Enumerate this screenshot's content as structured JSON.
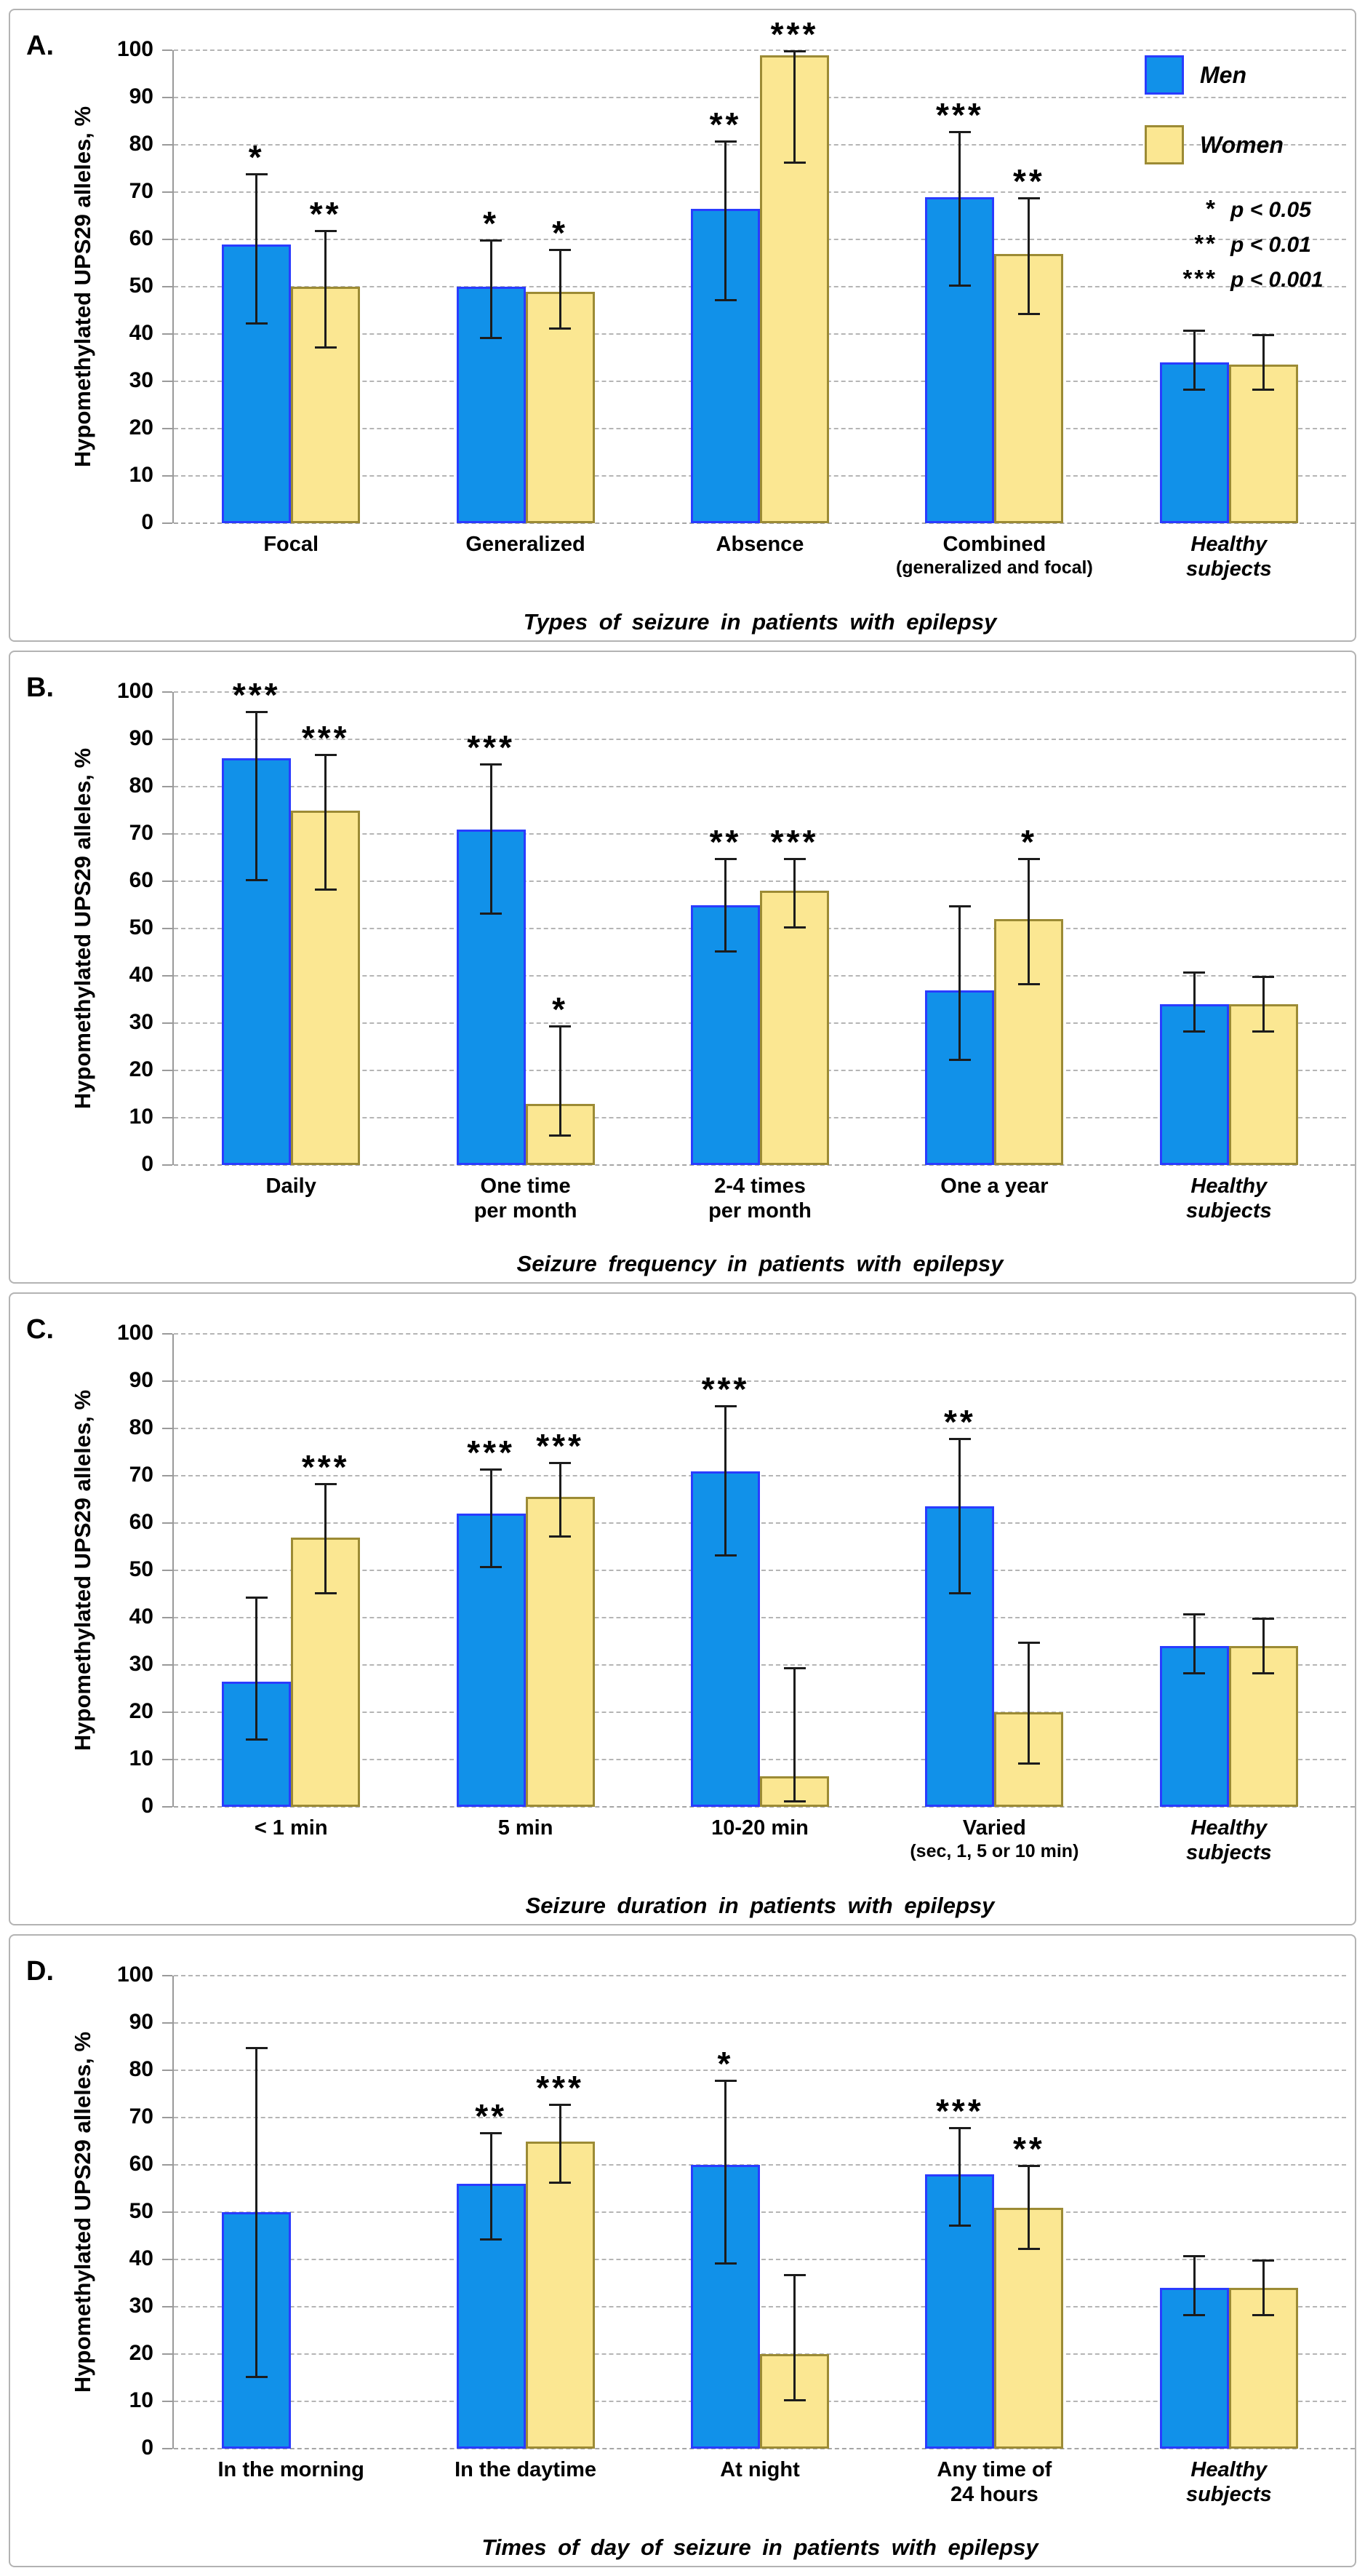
{
  "figure": {
    "ylabel": "Hypomethylated UPS29 alleles, %",
    "colors": {
      "men_fill": "#1191e9",
      "men_border": "#2a3cff",
      "women_fill": "#fbe792",
      "women_border": "#9c8b35",
      "error": "#1c1c1c",
      "grid": "#b5b5b5",
      "axis": "#9a9a9a",
      "panel_border": "#b3b3b3"
    },
    "legend": {
      "men": "Men",
      "women": "Women",
      "sig": [
        {
          "stars": "*",
          "label": "p < 0.05"
        },
        {
          "stars": "**",
          "label": "p < 0.01"
        },
        {
          "stars": "***",
          "label": "p < 0.001"
        }
      ]
    }
  },
  "chart_data": [
    {
      "panel": "A.",
      "type": "bar",
      "ylabel": "Hypomethylated UPS29 alleles, %",
      "xlabel": "Types of seizure in patients with epilepsy",
      "ylim": [
        0,
        100
      ],
      "ytick_step": 10,
      "grid": true,
      "legend_position": "top-right",
      "categories": [
        {
          "label": "Focal"
        },
        {
          "label": "Generalized"
        },
        {
          "label": "Absence"
        },
        {
          "label": "Combined",
          "sublabel": "(generalized and focal)"
        },
        {
          "label": "Healthy\nsubjects",
          "italic": true
        }
      ],
      "series": [
        {
          "name": "Men",
          "values": [
            59,
            50,
            66.5,
            69,
            34
          ],
          "err_low": [
            42,
            39,
            47,
            50,
            28
          ],
          "err_high": [
            74,
            60,
            81,
            83,
            41
          ],
          "stars": [
            "*",
            "*",
            "**",
            "***",
            ""
          ]
        },
        {
          "name": "Women",
          "values": [
            50,
            49,
            99,
            57,
            33.5
          ],
          "err_low": [
            37,
            41,
            76,
            44,
            28
          ],
          "err_high": [
            62,
            58,
            100,
            69,
            40
          ],
          "stars": [
            "**",
            "*",
            "***",
            "**",
            ""
          ]
        }
      ]
    },
    {
      "panel": "B.",
      "type": "bar",
      "ylabel": "Hypomethylated UPS29 alleles, %",
      "xlabel": "Seizure frequency in patients with epilepsy",
      "ylim": [
        0,
        100
      ],
      "ytick_step": 10,
      "grid": true,
      "categories": [
        {
          "label": "Daily"
        },
        {
          "label": "One time\nper month"
        },
        {
          "label": "2-4 times\nper month"
        },
        {
          "label": "One a year"
        },
        {
          "label": "Healthy\nsubjects",
          "italic": true
        }
      ],
      "series": [
        {
          "name": "Men",
          "values": [
            86,
            71,
            55,
            37,
            34
          ],
          "err_low": [
            60,
            53,
            45,
            22,
            28
          ],
          "err_high": [
            96,
            85,
            65,
            55,
            41
          ],
          "stars": [
            "***",
            "***",
            "**",
            "",
            ""
          ]
        },
        {
          "name": "Women",
          "values": [
            75,
            13,
            58,
            52,
            34
          ],
          "err_low": [
            58,
            6,
            50,
            38,
            28
          ],
          "err_high": [
            87,
            29.5,
            65,
            65,
            40
          ],
          "stars": [
            "***",
            "*",
            "***",
            "*",
            ""
          ]
        }
      ]
    },
    {
      "panel": "C.",
      "type": "bar",
      "ylabel": "Hypomethylated UPS29 alleles, %",
      "xlabel": "Seizure duration in patients with epilepsy",
      "ylim": [
        0,
        100
      ],
      "ytick_step": 10,
      "grid": true,
      "categories": [
        {
          "label": "< 1 min"
        },
        {
          "label": "5 min"
        },
        {
          "label": "10-20 min"
        },
        {
          "label": "Varied",
          "sublabel": "(sec, 1, 5 or 10 min)"
        },
        {
          "label": "Healthy\nsubjects",
          "italic": true
        }
      ],
      "series": [
        {
          "name": "Men",
          "values": [
            26.5,
            62,
            71,
            63.5,
            34
          ],
          "err_low": [
            14,
            50.5,
            53,
            45,
            28
          ],
          "err_high": [
            44.5,
            71.5,
            85,
            78,
            41
          ],
          "stars": [
            "",
            "***",
            "***",
            "**",
            ""
          ]
        },
        {
          "name": "Women",
          "values": [
            57,
            65.5,
            6.5,
            20,
            34
          ],
          "err_low": [
            45,
            57,
            1,
            9,
            28
          ],
          "err_high": [
            68.5,
            73,
            29.5,
            35,
            40
          ],
          "stars": [
            "***",
            "***",
            "",
            "",
            ""
          ]
        }
      ]
    },
    {
      "panel": "D.",
      "type": "bar",
      "ylabel": "Hypomethylated UPS29 alleles, %",
      "xlabel": "Times of day of seizure in patients with epilepsy",
      "ylim": [
        0,
        100
      ],
      "ytick_step": 10,
      "grid": true,
      "categories": [
        {
          "label": "In the morning"
        },
        {
          "label": "In the daytime"
        },
        {
          "label": "At night"
        },
        {
          "label": "Any time of\n24 hours"
        },
        {
          "label": "Healthy\nsubjects",
          "italic": true
        }
      ],
      "series": [
        {
          "name": "Men",
          "values": [
            50,
            56,
            60,
            58,
            34
          ],
          "err_low": [
            15,
            44,
            39,
            47,
            28
          ],
          "err_high": [
            85,
            67,
            78,
            68,
            41
          ],
          "stars": [
            "",
            "**",
            "*",
            "***",
            ""
          ]
        },
        {
          "name": "Women",
          "values": [
            null,
            65,
            20,
            51,
            34
          ],
          "err_low": [
            null,
            56,
            10,
            42,
            28
          ],
          "err_high": [
            null,
            73,
            37,
            60,
            40
          ],
          "stars": [
            "",
            "***",
            "",
            "**",
            ""
          ]
        }
      ]
    }
  ]
}
